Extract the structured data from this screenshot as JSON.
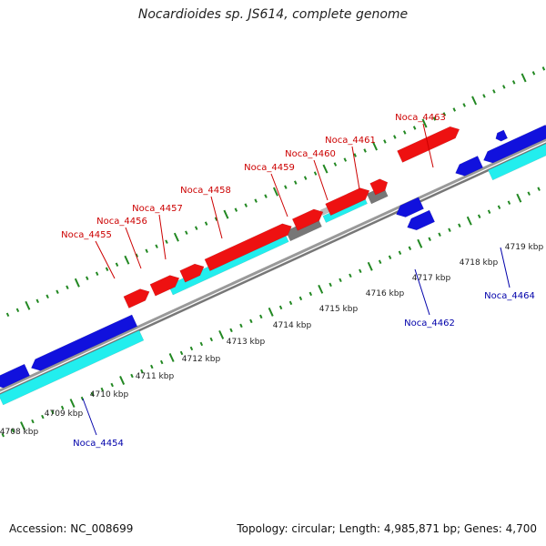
{
  "title": "Nocardioides sp. JS614, complete genome",
  "footer": {
    "accession": "Accession: NC_008699",
    "summary": "Topology: circular; Length: 4,985,871 bp; Genes: 4,700"
  },
  "colors": {
    "forward_gene": "#ee1111",
    "reverse_gene": "#1111dd",
    "cds_forward": "#22eeee",
    "cds_reverse": "#22eeee",
    "misc_feature": "#777777",
    "misc_light": "#bbbbbb",
    "label_forward": "#cc0000",
    "label_reverse": "#0000aa",
    "ticks": "#228822",
    "backbone": "#888888"
  },
  "scale_labels": [
    "4708 kbp",
    "4709 kbp",
    "4710 kbp",
    "4711 kbp",
    "4712 kbp",
    "4713 kbp",
    "4714 kbp",
    "4715 kbp",
    "4716 kbp",
    "4717 kbp",
    "4718 kbp",
    "4719 kbp"
  ],
  "forward_gene_labels": [
    "Noca_4455",
    "Noca_4456",
    "Noca_4457",
    "Noca_4458",
    "Noca_4459",
    "Noca_4460",
    "Noca_4461",
    "Noca_4463"
  ],
  "reverse_gene_labels": [
    "Noca_4454",
    "Noca_4462",
    "Noca_4464"
  ]
}
